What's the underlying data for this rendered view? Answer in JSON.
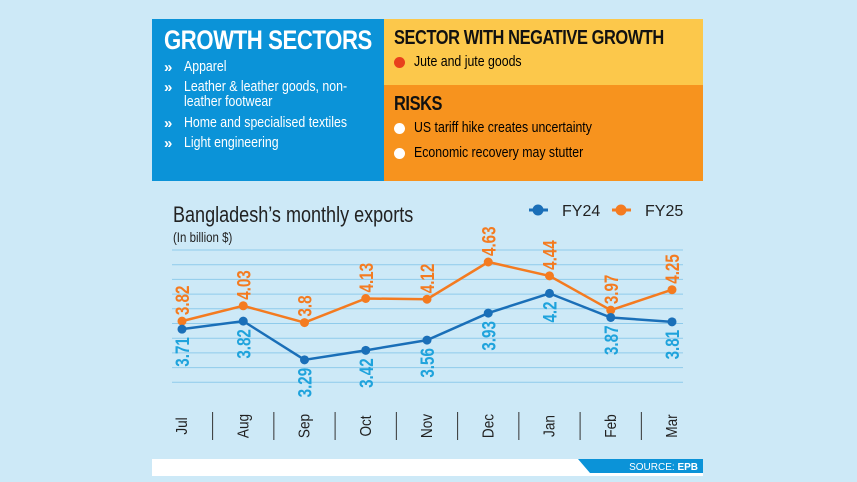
{
  "growth": {
    "title": "GROWTH SECTORS",
    "icon": "double-chevron-right-icon",
    "items": [
      "Apparel",
      "Leather & leather goods, non-",
      "leather footwear",
      "Home and specialised textiles",
      "Light engineering"
    ]
  },
  "negative": {
    "title": "SECTOR WITH NEGATIVE GROWTH",
    "icon": "down-arrow-circle-icon",
    "items": [
      "Jute and jute goods"
    ]
  },
  "risks": {
    "title": "RISKS",
    "icon": "arrow-circle-icon",
    "items": [
      "US tariff hike creates uncertainty",
      "Economic recovery may stutter"
    ]
  },
  "colors": {
    "growth_bg": "#0b93d8",
    "negative_bg": "#fcc84b",
    "risks_bg": "#f7931e",
    "fy24": "#1a6fb8",
    "fy25": "#f47b20",
    "fy24_label": "#1fa3dc",
    "page_bg": "#cde9f7"
  },
  "source": {
    "label": "SOURCE: ",
    "name": "EPB"
  },
  "chart_data": {
    "type": "line",
    "title": "Bangladesh’s monthly exports",
    "subtitle": "(In billion $)",
    "categories": [
      "Jul",
      "Aug",
      "Sep",
      "Oct",
      "Nov",
      "Dec",
      "Jan",
      "Feb",
      "Mar"
    ],
    "series": [
      {
        "name": "FY24",
        "values": [
          3.71,
          3.82,
          3.29,
          3.42,
          3.56,
          3.93,
          4.2,
          3.87,
          3.81
        ]
      },
      {
        "name": "FY25",
        "values": [
          3.82,
          4.03,
          3.8,
          4.13,
          4.12,
          4.63,
          4.44,
          3.97,
          4.25
        ]
      }
    ],
    "legend": "top-right",
    "grid": true
  }
}
